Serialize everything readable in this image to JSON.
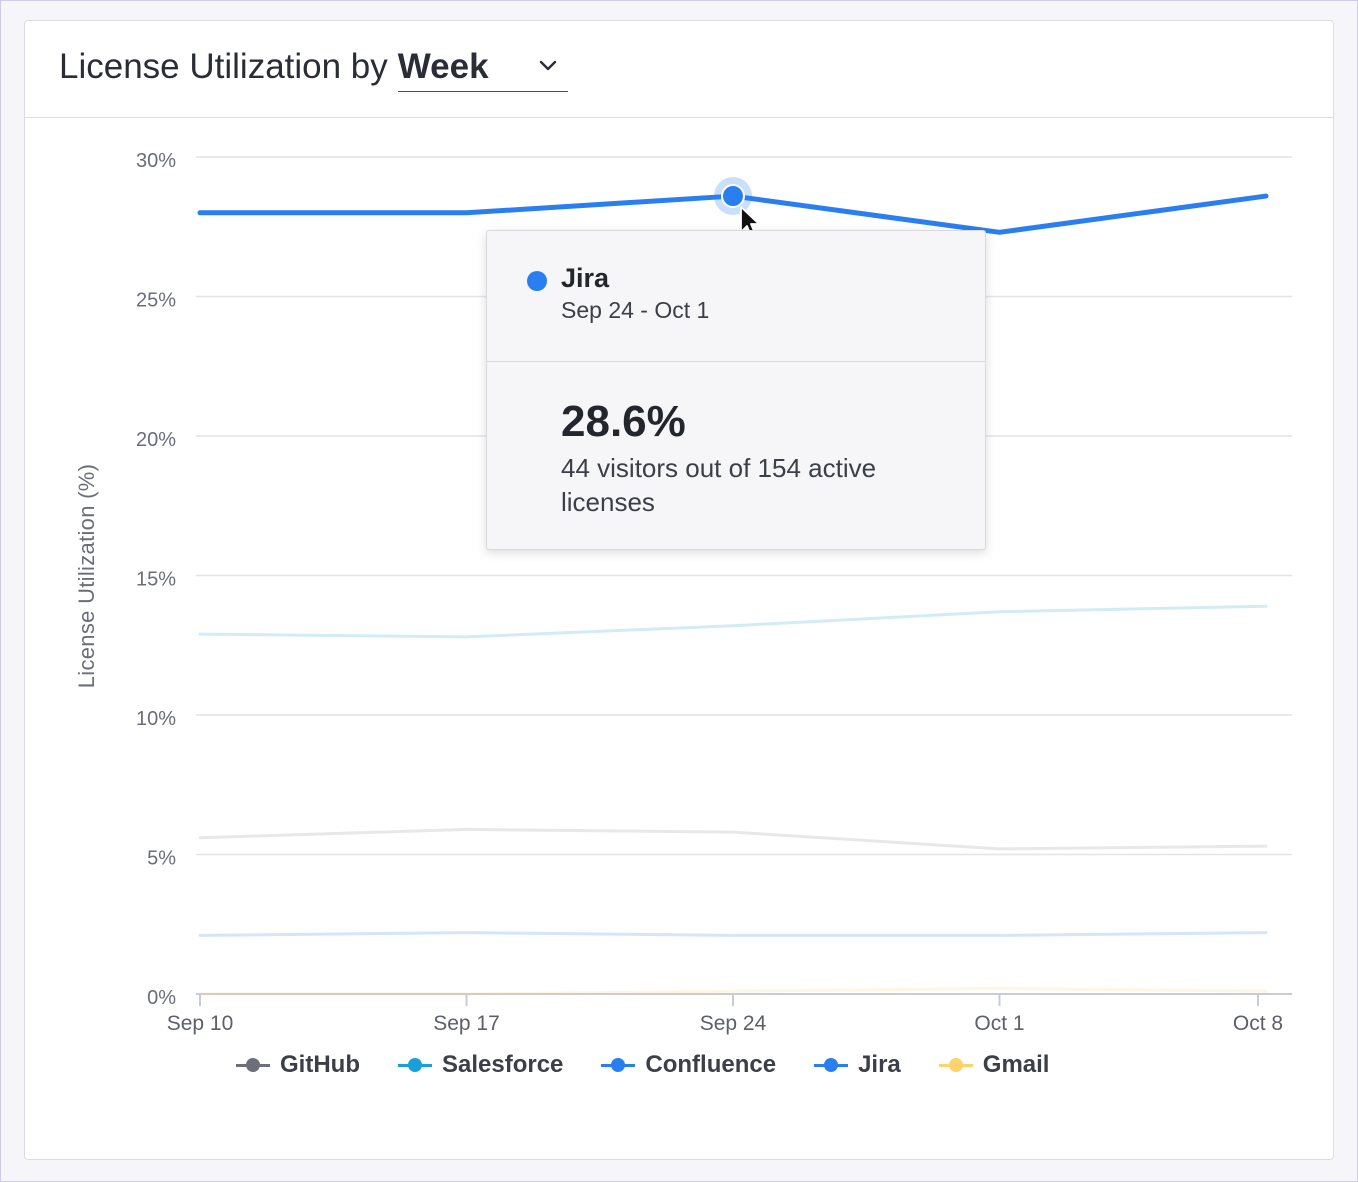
{
  "header": {
    "title_prefix": "License Utilization by",
    "period_selected": "Week"
  },
  "tooltip": {
    "series": "Jira",
    "range": "Sep 24 - Oct 1",
    "value": "28.6%",
    "detail": "44 visitors out of 154 active licenses",
    "color": "#2a7ff0"
  },
  "chart_data": {
    "type": "line",
    "ylabel": "License Utilization (%)",
    "y_ticks": [
      "0%",
      "5%",
      "10%",
      "15%",
      "20%",
      "25%",
      "30%"
    ],
    "ylim": [
      0,
      30
    ],
    "categories": [
      "Sep 10",
      "Sep 17",
      "Sep 24",
      "Oct 1",
      "Oct 8"
    ],
    "grid": true,
    "legend_position": "bottom",
    "series": [
      {
        "name": "GitHub",
        "color": "#6e6f7c",
        "values": [
          5.6,
          5.9,
          5.8,
          5.2,
          5.3
        ]
      },
      {
        "name": "Salesforce",
        "color": "#1aa0d8",
        "values": [
          12.9,
          12.8,
          13.2,
          13.7,
          13.9
        ]
      },
      {
        "name": "Confluence",
        "color": "#2a7ff0",
        "values": [
          2.1,
          2.2,
          2.1,
          2.1,
          2.2
        ]
      },
      {
        "name": "Jira",
        "color": "#2a7ff0",
        "values": [
          28.0,
          28.0,
          28.6,
          27.3,
          28.6
        ]
      },
      {
        "name": "Gmail",
        "color": "#ffd36b",
        "values": [
          0.0,
          0.0,
          0.1,
          0.2,
          0.1
        ]
      }
    ],
    "highlighted": {
      "series": "Jira",
      "index": 2
    }
  }
}
